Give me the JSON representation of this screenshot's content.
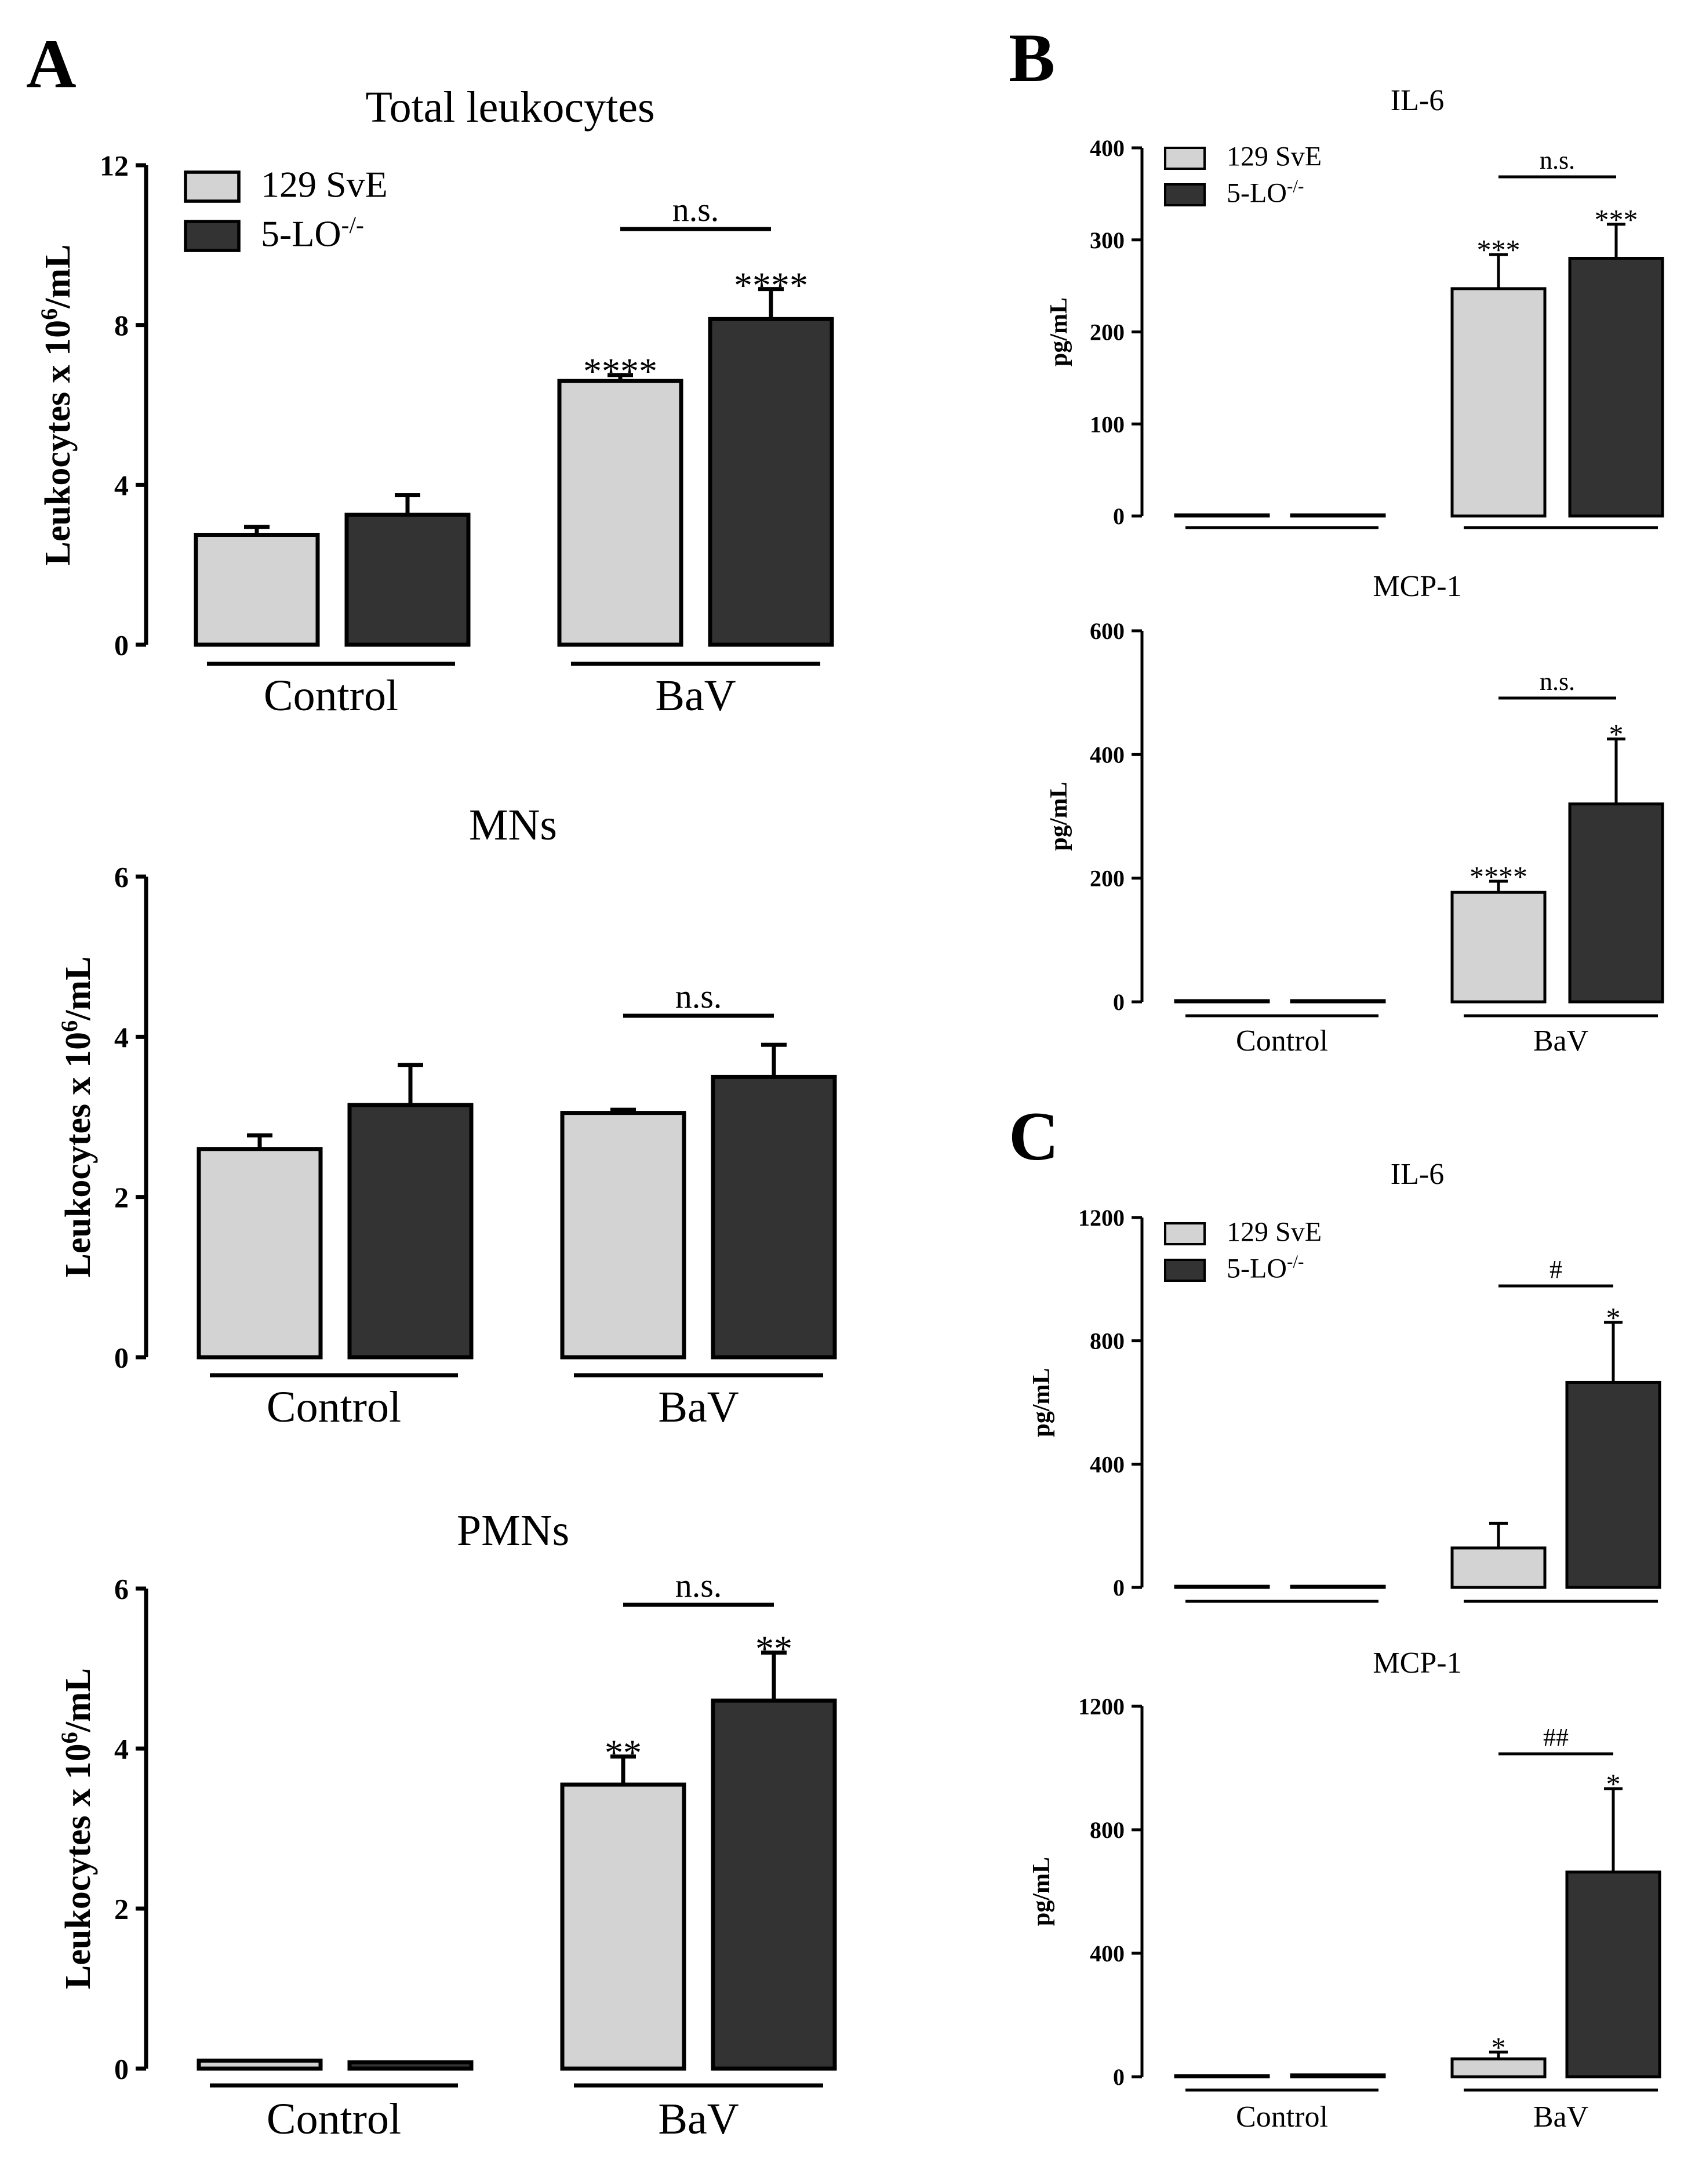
{
  "figure": {
    "panel_labels": [
      "A",
      "B",
      "C"
    ],
    "legend": {
      "wt": "129 SvE",
      "ko_base": "5-LO",
      "ko_sup": "-/-"
    },
    "groups": [
      "Control",
      "BaV"
    ],
    "colors": {
      "wt": "#d3d3d3",
      "ko": "#333333",
      "stroke": "#000000"
    }
  },
  "chart_data": [
    {
      "id": "A1",
      "type": "bar",
      "title": "Total leukocytes",
      "ylabel_base": "Leukocytes x 10",
      "ylabel_sup": "6",
      "ylabel_tail": "/mL",
      "ylim": [
        0,
        12
      ],
      "yticks": [
        "0",
        "4",
        "8",
        "12"
      ],
      "categories": [
        "Control",
        "BaV"
      ],
      "series": [
        {
          "name": "129 SvE",
          "values": [
            2.75,
            6.6
          ],
          "errors": [
            0.2,
            0.15
          ],
          "stars": [
            "",
            "****"
          ]
        },
        {
          "name": "5-LO-/-",
          "values": [
            3.25,
            8.15
          ],
          "errors": [
            0.5,
            0.75
          ],
          "stars": [
            "",
            "****"
          ]
        }
      ],
      "bracket_label": "n.s.",
      "legend": true
    },
    {
      "id": "A2",
      "type": "bar",
      "title": "MNs",
      "ylabel_base": "Leukocytes x 10",
      "ylabel_sup": "6",
      "ylabel_tail": "/mL",
      "ylim": [
        0,
        6
      ],
      "yticks": [
        "0",
        "2",
        "4",
        "6"
      ],
      "categories": [
        "Control",
        "BaV"
      ],
      "series": [
        {
          "name": "129 SvE",
          "values": [
            2.6,
            3.05
          ],
          "errors": [
            0.17,
            0.04
          ],
          "stars": [
            "",
            ""
          ]
        },
        {
          "name": "5-LO-/-",
          "values": [
            3.15,
            3.5
          ],
          "errors": [
            0.5,
            0.4
          ],
          "stars": [
            "",
            ""
          ]
        }
      ],
      "bracket_label": "n.s.",
      "legend": false
    },
    {
      "id": "A3",
      "type": "bar",
      "title": "PMNs",
      "ylabel_base": "Leukocytes x 10",
      "ylabel_sup": "6",
      "ylabel_tail": "/mL",
      "ylim": [
        0,
        6
      ],
      "yticks": [
        "0",
        "2",
        "4",
        "6"
      ],
      "categories": [
        "Control",
        "BaV"
      ],
      "series": [
        {
          "name": "129 SvE",
          "values": [
            0.1,
            3.55
          ],
          "errors": [
            0,
            0.35
          ],
          "stars": [
            "",
            "**"
          ]
        },
        {
          "name": "5-LO-/-",
          "values": [
            0.08,
            4.6
          ],
          "errors": [
            0,
            0.6
          ],
          "stars": [
            "",
            "**"
          ]
        }
      ],
      "bracket_label": "n.s.",
      "legend": false
    },
    {
      "id": "B1",
      "type": "bar",
      "title": "IL-6",
      "ylabel": "pg/mL",
      "ylim": [
        0,
        400
      ],
      "yticks": [
        "0",
        "100",
        "200",
        "300",
        "400"
      ],
      "categories": [
        "Control",
        "BaV"
      ],
      "series": [
        {
          "name": "129 SvE",
          "values": [
            1,
            247
          ],
          "errors": [
            0,
            37
          ],
          "stars": [
            "",
            "***"
          ]
        },
        {
          "name": "5-LO-/-",
          "values": [
            1,
            280
          ],
          "errors": [
            0,
            37
          ],
          "stars": [
            "",
            "***"
          ]
        }
      ],
      "bracket_label": "n.s.",
      "legend": true
    },
    {
      "id": "B2",
      "type": "bar",
      "title": "MCP-1",
      "ylabel": "pg/mL",
      "ylim": [
        0,
        600
      ],
      "yticks": [
        "0",
        "200",
        "400",
        "600"
      ],
      "categories": [
        "Control",
        "BaV"
      ],
      "series": [
        {
          "name": "129 SvE",
          "values": [
            2,
            177
          ],
          "errors": [
            0,
            18
          ],
          "stars": [
            "",
            "****"
          ]
        },
        {
          "name": "5-LO-/-",
          "values": [
            2,
            320
          ],
          "errors": [
            0,
            105
          ],
          "stars": [
            "",
            "*"
          ]
        }
      ],
      "bracket_label": "n.s.",
      "legend": false
    },
    {
      "id": "C1",
      "type": "bar",
      "title": "IL-6",
      "ylabel": "pg/mL",
      "ylim": [
        0,
        1200
      ],
      "yticks": [
        "0",
        "400",
        "800",
        "1200"
      ],
      "categories": [
        "Control",
        "BaV"
      ],
      "series": [
        {
          "name": "129 SvE",
          "values": [
            2,
            128
          ],
          "errors": [
            0,
            80
          ],
          "stars": [
            "",
            ""
          ]
        },
        {
          "name": "5-LO-/-",
          "values": [
            2,
            665
          ],
          "errors": [
            0,
            195
          ],
          "stars": [
            "",
            "*"
          ]
        }
      ],
      "bracket_label": "#",
      "legend": true
    },
    {
      "id": "C2",
      "type": "bar",
      "title": "MCP-1",
      "ylabel": "pg/mL",
      "ylim": [
        0,
        1200
      ],
      "yticks": [
        "0",
        "400",
        "800",
        "1200"
      ],
      "categories": [
        "Control",
        "BaV"
      ],
      "series": [
        {
          "name": "129 SvE",
          "values": [
            2,
            58
          ],
          "errors": [
            0,
            22
          ],
          "stars": [
            "",
            "*"
          ]
        },
        {
          "name": "5-LO-/-",
          "values": [
            6,
            663
          ],
          "errors": [
            0,
            270
          ],
          "stars": [
            "",
            "*"
          ]
        }
      ],
      "bracket_label": "##",
      "legend": false
    }
  ]
}
